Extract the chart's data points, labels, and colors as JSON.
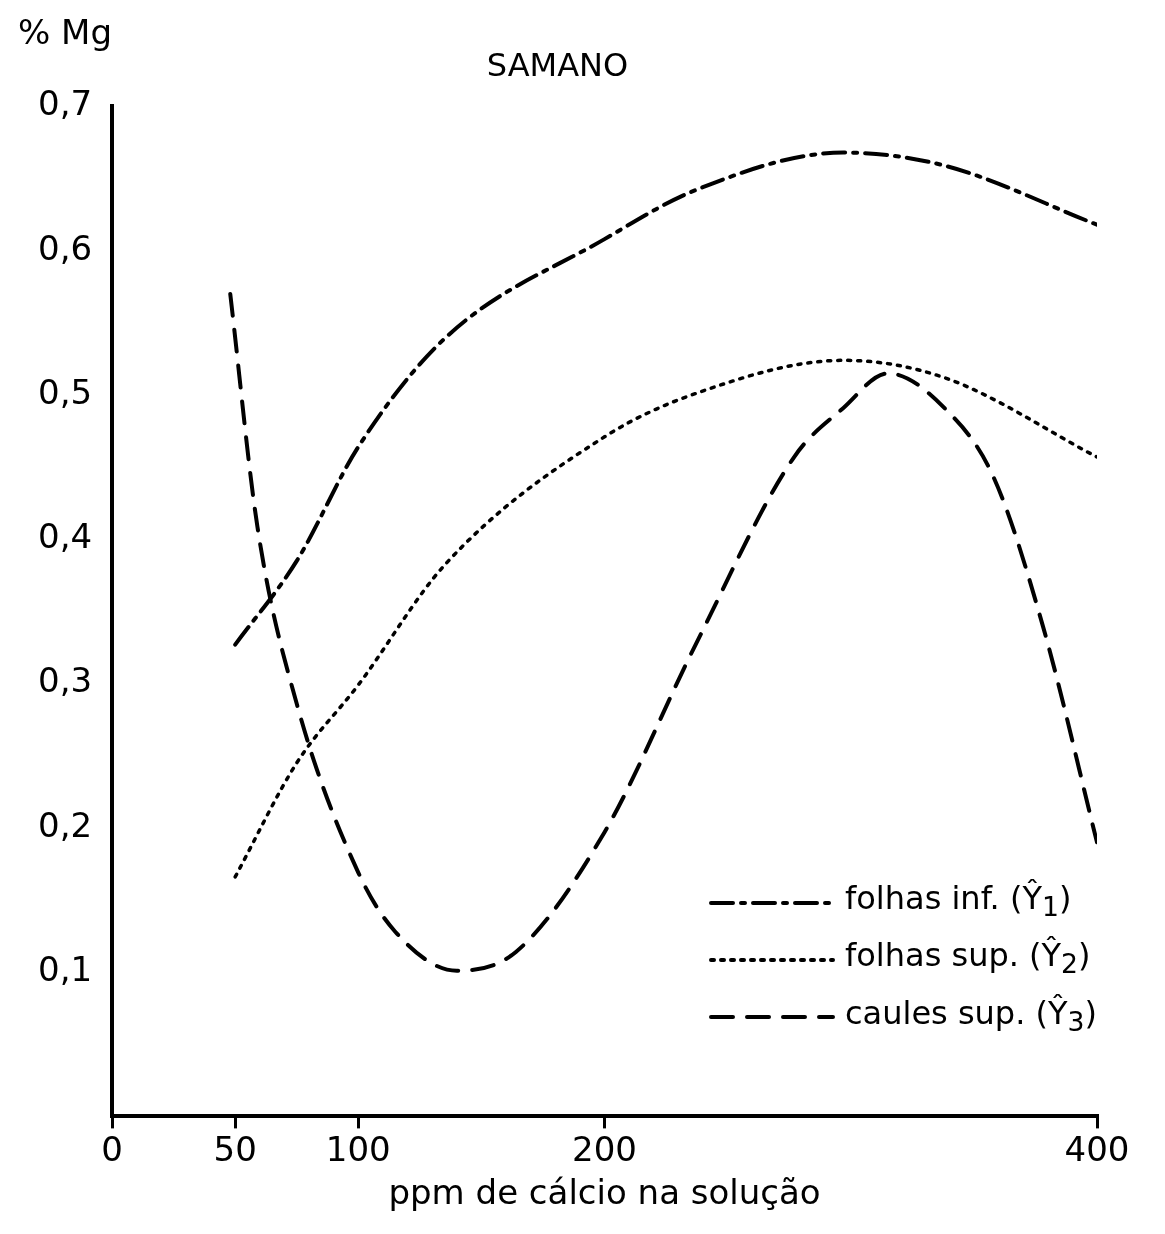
{
  "chart_data": {
    "type": "line",
    "title": "SAMANO",
    "xlabel": "ppm de cálcio na solução",
    "ylabel": "% Mg",
    "xlim": [
      0,
      400
    ],
    "xticks": [
      0,
      50,
      100,
      200,
      400
    ],
    "ylim": [
      0,
      0.7
    ],
    "yticks": [
      {
        "value": 0.1,
        "label": "0,1"
      },
      {
        "value": 0.2,
        "label": "0,2"
      },
      {
        "value": 0.3,
        "label": "0,3"
      },
      {
        "value": 0.4,
        "label": "0,4"
      },
      {
        "value": 0.5,
        "label": "0,5"
      },
      {
        "value": 0.6,
        "label": "0,6"
      },
      {
        "value": 0.7,
        "label": "0,7"
      }
    ],
    "grid": false,
    "legend": "bottom right",
    "marker": "none",
    "series": [
      {
        "name": "folhas inf. (Ŷ$_{1}$)",
        "color": "#000000",
        "line_style": "dashdot",
        "x": [
          50,
          75,
          100,
          135,
          200,
          237,
          297,
          338,
          400
        ],
        "values": [
          0.327,
          0.385,
          0.464,
          0.539,
          0.608,
          0.642,
          0.668,
          0.659,
          0.618
        ]
      },
      {
        "name": "folhas sup. (Ŷ$_{2}$)",
        "color": "#000000",
        "line_style": "dotted",
        "x": [
          50,
          75,
          100,
          135,
          200,
          237,
          297,
          338,
          400
        ],
        "values": [
          0.166,
          0.245,
          0.299,
          0.382,
          0.471,
          0.501,
          0.524,
          0.512,
          0.457
        ]
      },
      {
        "name": "caules sup. (Ŷ$_{3}$)",
        "color": "#000000",
        "line_style": "dashed",
        "x": [
          48,
          59,
          75,
          100,
          115,
          140,
          164,
          200,
          237,
          277,
          297,
          315,
          338,
          358,
          378,
          400
        ],
        "values": [
          0.57,
          0.409,
          0.286,
          0.169,
          0.128,
          0.101,
          0.114,
          0.197,
          0.327,
          0.457,
          0.491,
          0.515,
          0.491,
          0.443,
          0.34,
          0.19
        ]
      }
    ]
  }
}
